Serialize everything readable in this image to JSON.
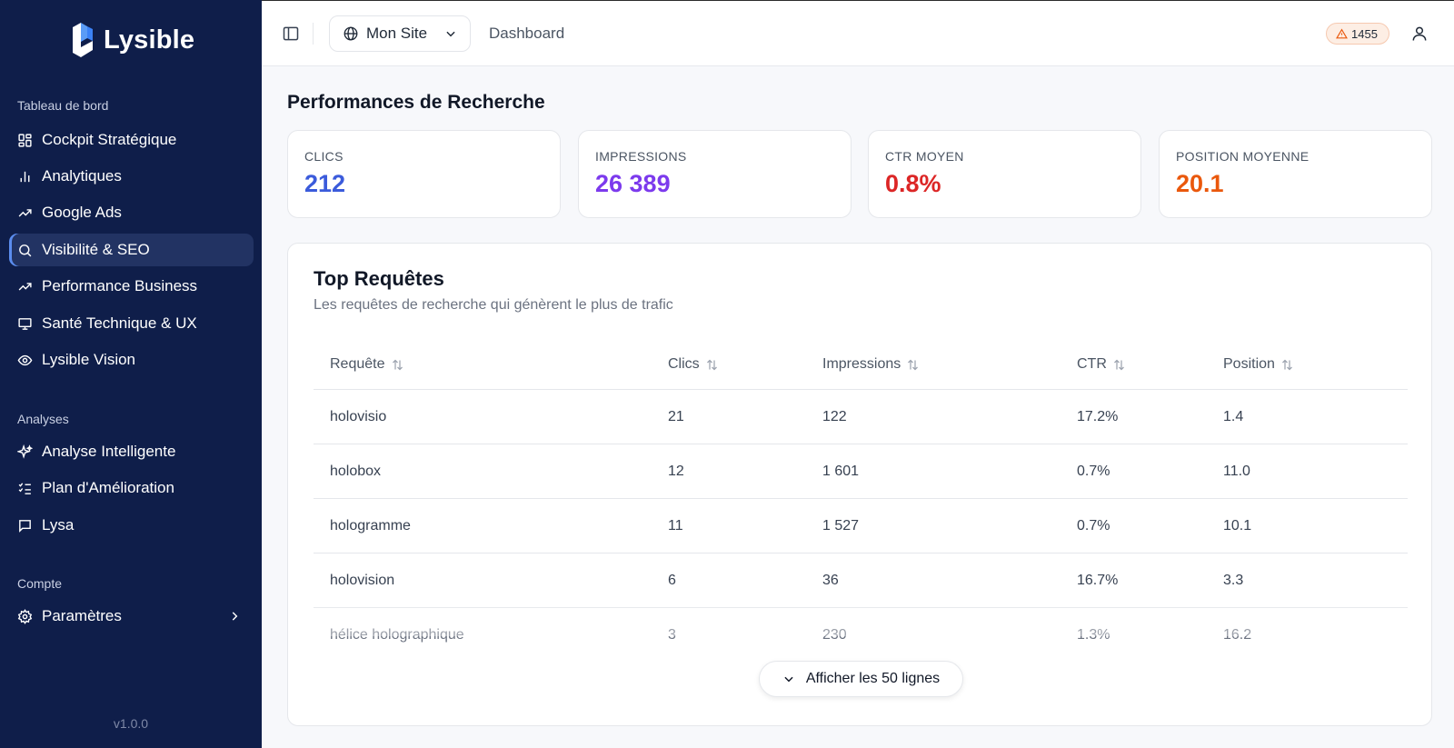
{
  "brand": {
    "name": "Lysible"
  },
  "sidebar": {
    "sections": [
      {
        "title": "Tableau de bord",
        "items": [
          {
            "label": "Cockpit Stratégique",
            "icon": "layout-grid-icon"
          },
          {
            "label": "Analytiques",
            "icon": "bar-chart-icon"
          },
          {
            "label": "Google Ads",
            "icon": "trending-up-icon"
          },
          {
            "label": "Visibilité & SEO",
            "icon": "search-icon",
            "active": true
          },
          {
            "label": "Performance Business",
            "icon": "trending-up-icon"
          },
          {
            "label": "Santé Technique & UX",
            "icon": "monitor-icon"
          },
          {
            "label": "Lysible Vision",
            "icon": "eye-icon"
          }
        ]
      },
      {
        "title": "Analyses",
        "items": [
          {
            "label": "Analyse Intelligente",
            "icon": "sparkles-icon"
          },
          {
            "label": "Plan d'Amélioration",
            "icon": "list-checks-icon"
          },
          {
            "label": "Lysa",
            "icon": "message-square-icon"
          }
        ]
      },
      {
        "title": "Compte",
        "items": [
          {
            "label": "Paramètres",
            "icon": "settings-icon"
          }
        ]
      }
    ],
    "version": "v1.0.0"
  },
  "header": {
    "site_label": "Mon Site",
    "breadcrumb": "Dashboard",
    "alert_count": "1455"
  },
  "main": {
    "title": "Performances de Recherche",
    "kpis": [
      {
        "label": "CLICS",
        "value": "212",
        "color": "#3b5bdb"
      },
      {
        "label": "IMPRESSIONS",
        "value": "26 389",
        "color": "#7c3aed"
      },
      {
        "label": "CTR MOYEN",
        "value": "0.8%",
        "color": "#dc2626"
      },
      {
        "label": "POSITION MOYENNE",
        "value": "20.1",
        "color": "#ea580c"
      }
    ],
    "queries": {
      "title": "Top Requêtes",
      "subtitle": "Les requêtes de recherche qui génèrent le plus de trafic",
      "columns": [
        "Requête",
        "Clics",
        "Impressions",
        "CTR",
        "Position"
      ],
      "rows": [
        [
          "holovisio",
          "21",
          "122",
          "17.2%",
          "1.4"
        ],
        [
          "holobox",
          "12",
          "1 601",
          "0.7%",
          "11.0"
        ],
        [
          "hologramme",
          "11",
          "1 527",
          "0.7%",
          "10.1"
        ],
        [
          "holovision",
          "6",
          "36",
          "16.7%",
          "3.3"
        ],
        [
          "hélice holographique",
          "3",
          "230",
          "1.3%",
          "16.2"
        ]
      ],
      "show_more_label": "Afficher les 50 lignes"
    }
  }
}
